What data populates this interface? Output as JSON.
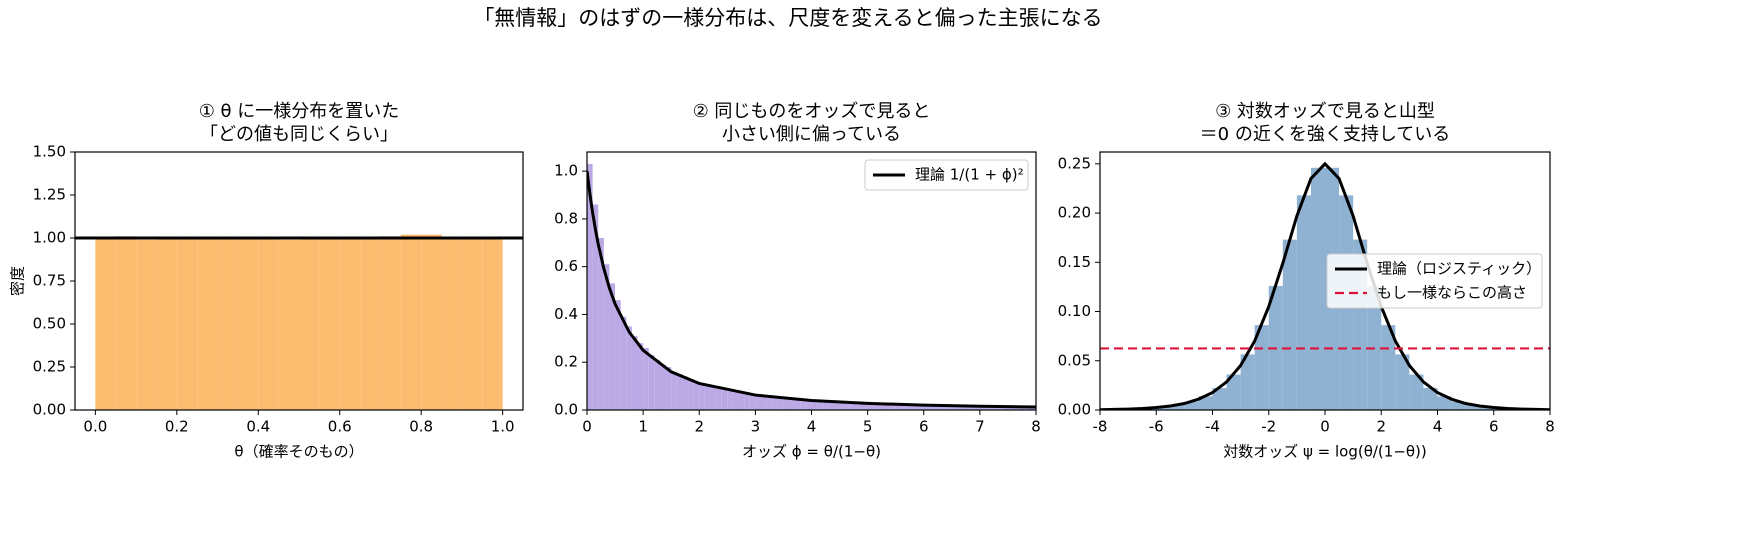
{
  "title": "「無情報」のはずの一様分布は、尺度を変えると偏った主張になる",
  "chart_data": [
    {
      "type": "histogram",
      "title": [
        "① θ に一様分布を置いた",
        "「どの値も同じくらい」"
      ],
      "xlabel": "θ（確率そのもの）",
      "ylabel": "密度",
      "bins": [
        0,
        0.05,
        0.1,
        0.15,
        0.2,
        0.25,
        0.3,
        0.35,
        0.4,
        0.45,
        0.5,
        0.55,
        0.6,
        0.65,
        0.7,
        0.75,
        0.8,
        0.85,
        0.9,
        0.95,
        1.0
      ],
      "values": [
        1.0,
        1.01,
        0.99,
        1.0,
        1.0,
        1.0,
        1.0,
        1.0,
        1.0,
        0.99,
        1.0,
        1.0,
        1.0,
        1.0,
        1.01,
        1.02,
        1.02,
        1.0,
        1.0,
        1.0
      ],
      "color": "#fdbd70",
      "series": [
        {
          "x": [
            -0.05,
            1.05
          ],
          "values": [
            1,
            1
          ],
          "color": "#000000",
          "linestyle": "solid"
        }
      ],
      "xlim": [
        -0.05,
        1.05
      ],
      "xticks": [
        {
          "value": 0,
          "label": "0.0"
        },
        {
          "value": 0.2,
          "label": "0.2"
        },
        {
          "value": 0.4,
          "label": "0.4"
        },
        {
          "value": 0.6,
          "label": "0.6"
        },
        {
          "value": 0.8,
          "label": "0.8"
        },
        {
          "value": 1,
          "label": "1.0"
        }
      ],
      "ylim": [
        0,
        1.5
      ],
      "yticks": [
        {
          "value": 0,
          "label": "0.00"
        },
        {
          "value": 0.25,
          "label": "0.25"
        },
        {
          "value": 0.5,
          "label": "0.50"
        },
        {
          "value": 0.75,
          "label": "0.75"
        },
        {
          "value": 1,
          "label": "1.00"
        },
        {
          "value": 1.25,
          "label": "1.25"
        },
        {
          "value": 1.5,
          "label": "1.50"
        }
      ]
    },
    {
      "type": "histogram",
      "title": [
        "② 同じものをオッズで見ると",
        "小さい側に偏っている"
      ],
      "xlabel": "オッズ ϕ = θ/(1−θ)",
      "bins": [
        0,
        0.1,
        0.2,
        0.3,
        0.4,
        0.5,
        0.6,
        0.7,
        0.8,
        0.9,
        1.0,
        1.1,
        1.2,
        1.3,
        1.4,
        1.5,
        1.6,
        1.7,
        1.8,
        1.9,
        2.0,
        2.1,
        2.2,
        2.3,
        2.4,
        2.5,
        2.6,
        2.7,
        2.8,
        2.9,
        3.0,
        3.1,
        3.2,
        3.3,
        3.4,
        3.5,
        3.6,
        3.7,
        3.8,
        3.9,
        4.0,
        4.1,
        4.2,
        4.3,
        4.4,
        4.5,
        4.6,
        4.7,
        4.8,
        4.9,
        5.0,
        5.1,
        5.2,
        5.3,
        5.4,
        5.5,
        5.6,
        5.7,
        5.8,
        5.9,
        6.0,
        6.1,
        6.2,
        6.3,
        6.4,
        6.5,
        6.6,
        6.7,
        6.8,
        6.9,
        7.0,
        7.1,
        7.2,
        7.3,
        7.4,
        7.5,
        7.6,
        7.7,
        7.8,
        7.9,
        8.0
      ],
      "values": [
        1.03,
        0.86,
        0.72,
        0.61,
        0.53,
        0.46,
        0.39,
        0.35,
        0.31,
        0.28,
        0.26,
        0.23,
        0.21,
        0.19,
        0.18,
        0.16,
        0.15,
        0.14,
        0.13,
        0.12,
        0.108,
        0.101,
        0.095,
        0.089,
        0.084,
        0.079,
        0.075,
        0.071,
        0.067,
        0.064,
        0.061,
        0.058,
        0.055,
        0.053,
        0.051,
        0.048,
        0.046,
        0.044,
        0.043,
        0.041,
        0.039,
        0.038,
        0.036,
        0.035,
        0.034,
        0.032,
        0.031,
        0.03,
        0.029,
        0.028,
        0.027,
        0.026,
        0.026,
        0.025,
        0.024,
        0.023,
        0.023,
        0.022,
        0.021,
        0.021,
        0.02,
        0.02,
        0.019,
        0.019,
        0.018,
        0.018,
        0.017,
        0.017,
        0.016,
        0.016,
        0.016,
        0.015,
        0.015,
        0.015,
        0.014,
        0.014,
        0.014,
        0.013,
        0.013,
        0.013
      ],
      "color": "#bba9e6",
      "series": [
        {
          "name": "理論 1/(1 + ϕ)²",
          "color": "#000000",
          "linestyle": "solid",
          "x": [
            0,
            0.05,
            0.1,
            0.15,
            0.2,
            0.3,
            0.4,
            0.5,
            0.75,
            1,
            1.5,
            2,
            3,
            4,
            5,
            6,
            7,
            8
          ],
          "values": [
            1,
            0.907,
            0.826,
            0.756,
            0.694,
            0.592,
            0.51,
            0.444,
            0.327,
            0.25,
            0.16,
            0.111,
            0.0625,
            0.04,
            0.0278,
            0.0204,
            0.0156,
            0.0123
          ]
        }
      ],
      "legend": "upper right",
      "xlim": [
        0,
        8
      ],
      "xticks": [
        0,
        1,
        2,
        3,
        4,
        5,
        6,
        7,
        8
      ],
      "ylim": [
        0,
        1.08
      ],
      "yticks": [
        {
          "value": 0,
          "label": "0.0"
        },
        {
          "value": 0.2,
          "label": "0.2"
        },
        {
          "value": 0.4,
          "label": "0.4"
        },
        {
          "value": 0.6,
          "label": "0.6"
        },
        {
          "value": 0.8,
          "label": "0.8"
        },
        {
          "value": 1,
          "label": "1.0"
        }
      ]
    },
    {
      "type": "histogram",
      "title": [
        "③ 対数オッズで見ると山型",
        "＝0 の近くを強く支持している"
      ],
      "xlabel": "対数オッズ ψ = log(θ/(1−θ))",
      "bins": [
        -8,
        -7.5,
        -7,
        -6.5,
        -6,
        -5.5,
        -5,
        -4.5,
        -4,
        -3.5,
        -3,
        -2.5,
        -2,
        -1.5,
        -1,
        -0.5,
        0,
        0.5,
        1,
        1.5,
        2,
        2.5,
        3,
        3.5,
        4,
        4.5,
        5,
        5.5,
        6,
        6.5,
        7,
        7.5,
        8
      ],
      "values": [
        0.0004,
        0.0007,
        0.0012,
        0.0019,
        0.0032,
        0.0052,
        0.0085,
        0.0139,
        0.0224,
        0.036,
        0.0565,
        0.0862,
        0.126,
        0.173,
        0.218,
        0.246,
        0.246,
        0.218,
        0.173,
        0.126,
        0.0862,
        0.0565,
        0.036,
        0.0224,
        0.0139,
        0.0085,
        0.0052,
        0.0032,
        0.0019,
        0.0012,
        0.0007,
        0.0004
      ],
      "color": "#8fb2d2",
      "series": [
        {
          "name": "理論（ロジスティック）",
          "color": "#000000",
          "linestyle": "solid",
          "x": [
            -8,
            -7.5,
            -7,
            -6.5,
            -6,
            -5.5,
            -5,
            -4.5,
            -4,
            -3.5,
            -3,
            -2.5,
            -2,
            -1.5,
            -1,
            -0.5,
            0,
            0.5,
            1,
            1.5,
            2,
            2.5,
            3,
            3.5,
            4,
            4.5,
            5,
            5.5,
            6,
            6.5,
            7,
            7.5,
            8
          ],
          "values": [
            0.0003,
            0.0006,
            0.0009,
            0.0015,
            0.0025,
            0.0041,
            0.0066,
            0.011,
            0.0177,
            0.0285,
            0.0452,
            0.0701,
            0.105,
            0.149,
            0.197,
            0.235,
            0.25,
            0.235,
            0.197,
            0.149,
            0.105,
            0.0701,
            0.0452,
            0.0285,
            0.0177,
            0.011,
            0.0066,
            0.0041,
            0.0025,
            0.0015,
            0.0009,
            0.0006,
            0.0003
          ]
        },
        {
          "name": "もし一様ならこの高さ",
          "color": "#dc143c",
          "linestyle": "dashed",
          "x": [
            -8,
            8
          ],
          "values": [
            0.0625,
            0.0625
          ]
        }
      ],
      "legend": "center right",
      "xlim": [
        -8,
        8
      ],
      "xticks": [
        -8,
        -6,
        -4,
        -2,
        0,
        2,
        4,
        6,
        8
      ],
      "ylim": [
        0,
        0.262
      ],
      "yticks": [
        {
          "value": 0,
          "label": "0.00"
        },
        {
          "value": 0.05,
          "label": "0.05"
        },
        {
          "value": 0.1,
          "label": "0.10"
        },
        {
          "value": 0.15,
          "label": "0.15"
        },
        {
          "value": 0.2,
          "label": "0.20"
        },
        {
          "value": 0.25,
          "label": "0.25"
        }
      ]
    }
  ]
}
